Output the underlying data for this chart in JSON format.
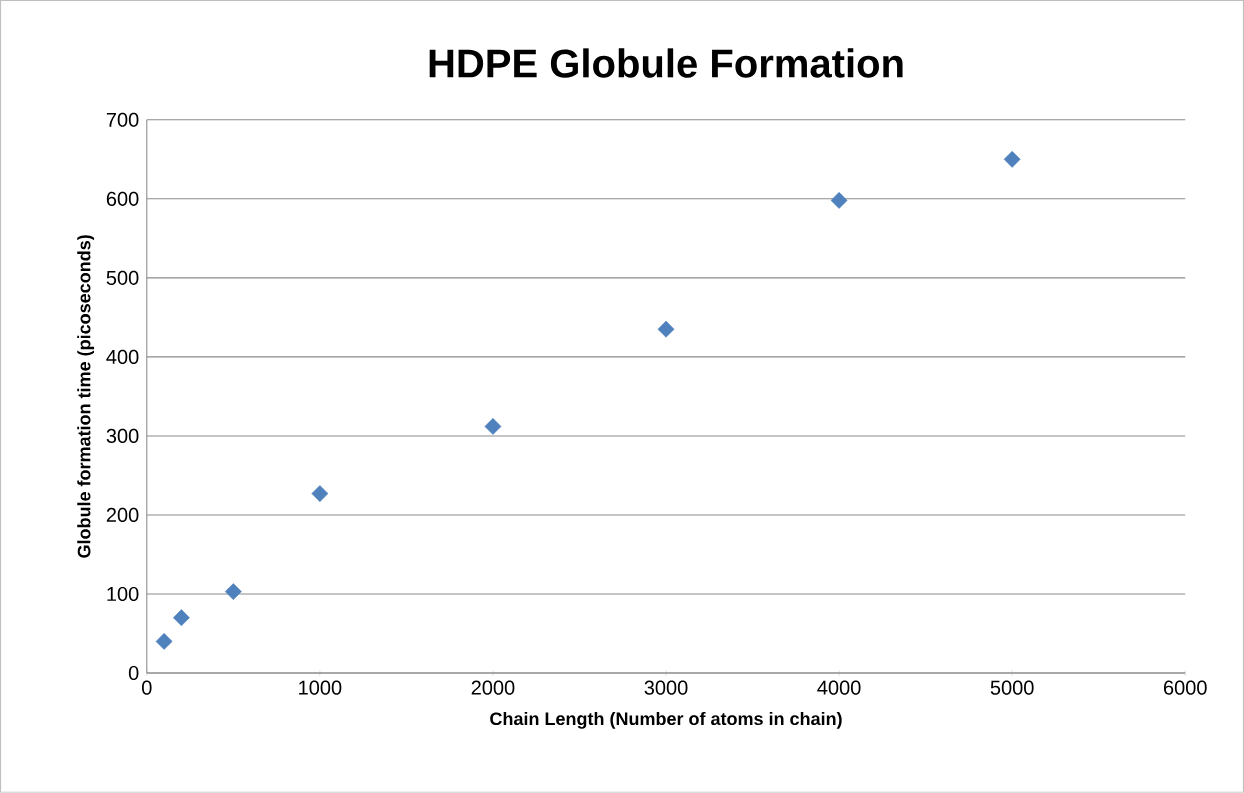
{
  "chart_data": {
    "type": "scatter",
    "title": "HDPE Globule Formation",
    "xlabel": "Chain Length (Number of atoms in chain)",
    "ylabel": "Globule formation time (picoseconds)",
    "x": [
      100,
      200,
      500,
      1000,
      2000,
      3000,
      4000,
      5000
    ],
    "series": [
      {
        "color": "#4f81bd",
        "values": [
          40,
          70,
          103,
          227,
          312,
          435,
          598,
          650
        ]
      }
    ],
    "xlim": [
      0,
      6000
    ],
    "xticks": [
      0,
      1000,
      2000,
      3000,
      4000,
      5000,
      6000
    ],
    "ylim": [
      0,
      700
    ],
    "yticks": [
      0,
      100,
      200,
      300,
      400,
      500,
      600,
      700
    ],
    "grid": "y",
    "marker": "diamond"
  }
}
